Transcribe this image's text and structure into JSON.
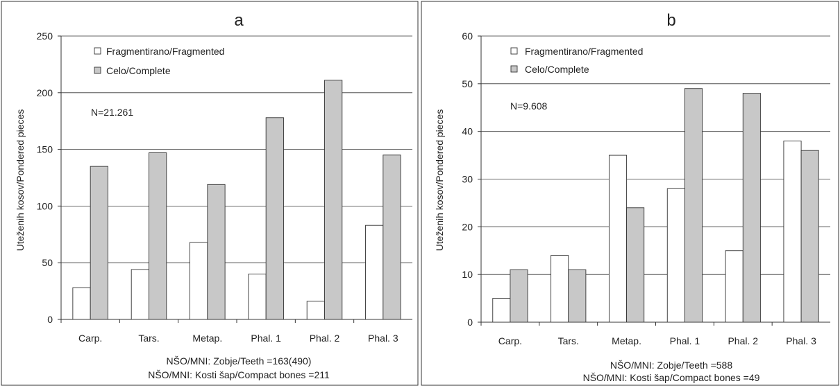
{
  "chart_data": [
    {
      "type": "bar",
      "panel_label": "a",
      "ylabel": "Uteženih kosov/Pondered pieces",
      "xlabel": "",
      "categories": [
        "Carp.",
        "Tars.",
        "Metap.",
        "Phal. 1",
        "Phal. 2",
        "Phal. 3"
      ],
      "series": [
        {
          "name": "Fragmentirano/Fragmented",
          "values": [
            28,
            44,
            68,
            40,
            16,
            83
          ]
        },
        {
          "name": "Celo/Complete",
          "values": [
            135,
            147,
            119,
            178,
            211,
            145
          ]
        }
      ],
      "ylim": [
        0,
        250
      ],
      "yticks": [
        0,
        50,
        100,
        150,
        200,
        250
      ],
      "grid": true,
      "legend_position": "top-left",
      "annotation": "N=21.261",
      "footnotes": [
        "NŠO/MNI: Zobje/Teeth =163(490)",
        "NŠO/MNI: Kosti šap/Compact bones =211"
      ]
    },
    {
      "type": "bar",
      "panel_label": "b",
      "ylabel": "Uteženih kosov/Pondered pieces",
      "xlabel": "",
      "categories": [
        "Carp.",
        "Tars.",
        "Metap.",
        "Phal. 1",
        "Phal. 2",
        "Phal. 3"
      ],
      "series": [
        {
          "name": "Fragmentirano/Fragmented",
          "values": [
            5,
            14,
            35,
            28,
            15,
            38
          ]
        },
        {
          "name": "Celo/Complete",
          "values": [
            11,
            11,
            24,
            49,
            48,
            36
          ]
        }
      ],
      "ylim": [
        0,
        60
      ],
      "yticks": [
        0,
        10,
        20,
        30,
        40,
        50,
        60
      ],
      "grid": true,
      "legend_position": "top-left",
      "annotation": "N=9.608",
      "footnotes": [
        "NŠO/MNI: Zobje/Teeth =588",
        "NŠO/MNI: Kosti šap/Compact bones =49"
      ]
    }
  ]
}
